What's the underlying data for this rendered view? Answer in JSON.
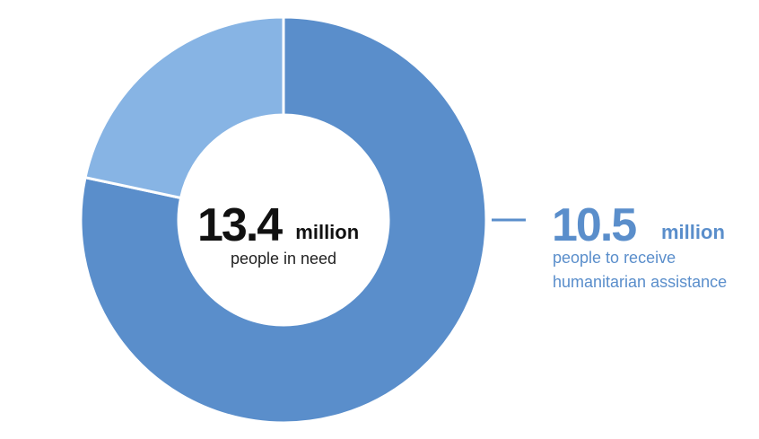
{
  "chart_data": {
    "type": "donut",
    "total": 13.4,
    "total_unit": "million",
    "total_label": "people in need",
    "values": [
      10.5,
      2.9
    ],
    "colors": [
      "#5a8ecb",
      "#87b4e4"
    ],
    "highlight_unit": "million",
    "highlight_label": [
      "people to receive",
      "humanitarian assistance"
    ]
  }
}
